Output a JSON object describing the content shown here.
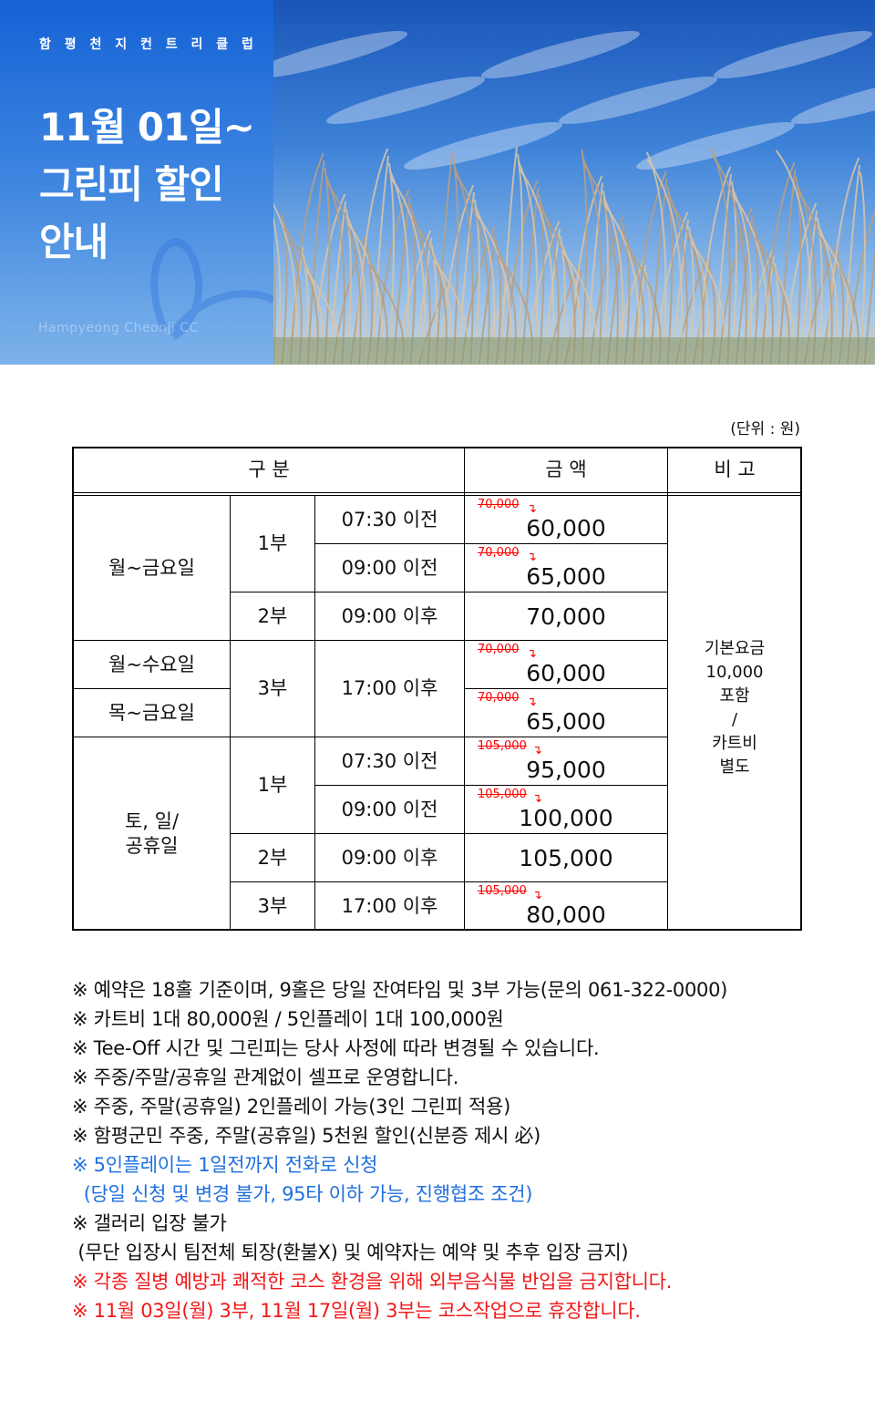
{
  "hero": {
    "club_name": "함 평 천 지 컨 트 리 클 럽",
    "title_lines": [
      "11월 01일~",
      "그린피 할인",
      "안내"
    ],
    "english_name": "Hampyeong Cheonji CC"
  },
  "unit_label": "(단위 : 원)",
  "table": {
    "headers": [
      "구   분",
      "금 액",
      "비 고"
    ],
    "groups": [
      "월~금요일",
      "월~수요일",
      "목~금요일",
      "토, 일/\n공휴일"
    ],
    "parts": [
      "1부",
      "2부",
      "3부",
      "1부",
      "2부",
      "3부"
    ],
    "times": [
      "07:30 이전",
      "09:00 이전",
      "09:00 이후",
      "17:00 이후",
      "07:30 이전",
      "09:00 이전",
      "09:00 이후",
      "17:00 이후"
    ],
    "prices": [
      {
        "original": "70,000",
        "price": "60,000"
      },
      {
        "original": "70,000",
        "price": "65,000"
      },
      {
        "original": "",
        "price": "70,000"
      },
      {
        "original": "70,000",
        "price": "60,000"
      },
      {
        "original": "70,000",
        "price": "65,000"
      },
      {
        "original": "105,000",
        "price": "95,000"
      },
      {
        "original": "105,000",
        "price": "100,000"
      },
      {
        "original": "",
        "price": "105,000"
      },
      {
        "original": "105,000",
        "price": "80,000"
      }
    ],
    "remark_lines": [
      "기본요금",
      "10,000",
      "포함",
      "/",
      "카트비",
      "별도"
    ],
    "discount_arrow": "↴"
  },
  "notes": [
    {
      "text": "※ 예약은 18홀 기준이며, 9홀은 당일 잔여타임 및 3부 가능(문의 061-322-0000)",
      "color": "black"
    },
    {
      "text": "※ 카트비 1대 80,000원 / 5인플레이 1대 100,000원",
      "color": "black"
    },
    {
      "text": "※ Tee-Off 시간 및 그린피는 당사 사정에 따라 변경될 수 있습니다.",
      "color": "black"
    },
    {
      "text": "※ 주중/주말/공휴일 관계없이 셀프로 운영합니다.",
      "color": "black"
    },
    {
      "text": "※ 주중, 주말(공휴일) 2인플레이 가능(3인 그린피 적용)",
      "color": "black"
    },
    {
      "text": "※ 함평군민 주중, 주말(공휴일) 5천원 할인(신분증 제시 必)",
      "color": "black"
    },
    {
      "text": "※ 5인플레이는 1일전까지 전화로 신청",
      "color": "blue"
    },
    {
      "text": "  (당일 신청 및 변경 불가, 95타 이하 가능, 진행협조 조건)",
      "color": "blue"
    },
    {
      "text": "※ 갤러리 입장 불가",
      "color": "black"
    },
    {
      "text": " (무단 입장시 팀전체 퇴장(환불X) 및 예약자는 예약 및 추후 입장 금지)",
      "color": "black"
    },
    {
      "text": "※ 각종 질병 예방과 쾌적한 코스 환경을 위해 외부음식물 반입을 금지합니다.",
      "color": "red"
    },
    {
      "text": "※ 11월 03일(월) 3부, 11월 17일(월) 3부는 코스작업으로 휴장합니다.",
      "color": "red"
    }
  ],
  "colors": {
    "blue_text": "#1f6fe0",
    "red_text": "#f01818",
    "hero_blue": "#1462d6"
  }
}
